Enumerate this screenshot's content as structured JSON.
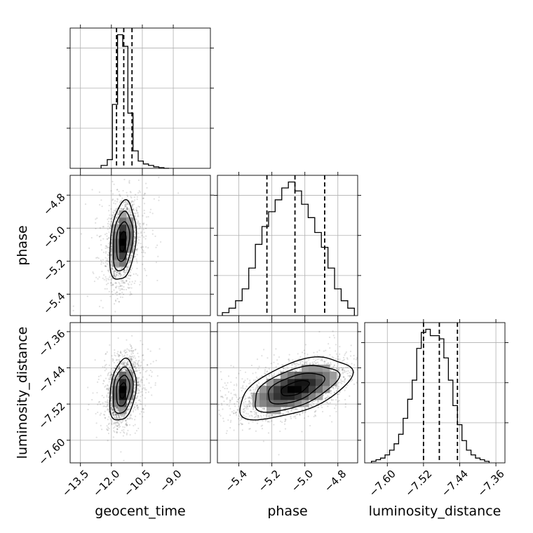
{
  "chart_data": {
    "type": "corner",
    "parameters": [
      "geocent_time",
      "phase",
      "luminosity_distance"
    ],
    "axis_labels": {
      "geocent_time": "geocent_time",
      "phase": "phase",
      "luminosity_distance": "luminosity_distance"
    },
    "ranges": {
      "geocent_time": [
        -14.0,
        -7.2
      ],
      "phase": [
        -5.53,
        -4.68
      ],
      "luminosity_distance": [
        -7.65,
        -7.34
      ]
    },
    "ticks": {
      "geocent_time": {
        "values": [
          -13.5,
          -12.0,
          -10.5,
          -9.0
        ],
        "labels": [
          "−13.5",
          "−12.0",
          "−10.5",
          "−9.0"
        ]
      },
      "phase": {
        "values": [
          -5.4,
          -5.2,
          -5.0,
          -4.8
        ],
        "labels": [
          "−5.4",
          "−5.2",
          "−5.0",
          "−4.8"
        ]
      },
      "luminosity_distance": {
        "values": [
          -7.6,
          -7.52,
          -7.44,
          -7.36
        ],
        "labels": [
          "−7.60",
          "−7.52",
          "−7.44",
          "−7.36"
        ]
      }
    },
    "quantiles": {
      "geocent_time": [
        -11.75,
        -11.4,
        -11.0
      ],
      "phase": [
        -5.23,
        -5.06,
        -4.88
      ],
      "luminosity_distance": [
        -7.52,
        -7.485,
        -7.445
      ]
    },
    "histograms": {
      "geocent_time": {
        "bin_edges": [
          -12.5,
          -12.2,
          -11.95,
          -11.7,
          -11.45,
          -11.2,
          -10.95,
          -10.7,
          -10.45,
          -10.2,
          -9.95,
          -9.7,
          -9.45,
          -9.2
        ],
        "counts": [
          0.02,
          0.06,
          0.44,
          0.92,
          0.84,
          0.38,
          0.12,
          0.05,
          0.03,
          0.02,
          0.01,
          0.005,
          0.0
        ]
      },
      "phase": {
        "bin_edges": [
          -5.5,
          -5.46,
          -5.42,
          -5.38,
          -5.34,
          -5.3,
          -5.26,
          -5.22,
          -5.18,
          -5.14,
          -5.1,
          -5.06,
          -5.02,
          -4.98,
          -4.94,
          -4.9,
          -4.86,
          -4.82,
          -4.78,
          -4.74,
          -4.7
        ],
        "counts": [
          0.02,
          0.05,
          0.1,
          0.18,
          0.32,
          0.48,
          0.6,
          0.7,
          0.78,
          0.86,
          0.9,
          0.84,
          0.75,
          0.66,
          0.56,
          0.46,
          0.32,
          0.18,
          0.1,
          0.05
        ]
      },
      "luminosity_distance": {
        "bin_edges": [
          -7.635,
          -7.625,
          -7.615,
          -7.605,
          -7.595,
          -7.585,
          -7.575,
          -7.565,
          -7.555,
          -7.545,
          -7.535,
          -7.525,
          -7.515,
          -7.505,
          -7.495,
          -7.485,
          -7.475,
          -7.465,
          -7.455,
          -7.445,
          -7.435,
          -7.425,
          -7.415,
          -7.405,
          -7.395,
          -7.385,
          -7.375
        ],
        "counts": [
          0.01,
          0.02,
          0.03,
          0.05,
          0.08,
          0.12,
          0.18,
          0.28,
          0.4,
          0.52,
          0.72,
          0.82,
          0.84,
          0.8,
          0.8,
          0.78,
          0.66,
          0.52,
          0.36,
          0.24,
          0.14,
          0.08,
          0.05,
          0.03,
          0.02,
          0.01
        ]
      }
    },
    "posterior_2d": [
      {
        "x": "geocent_time",
        "y": "phase",
        "mean": [
          -11.45,
          -5.08
        ],
        "std": [
          0.32,
          0.12
        ],
        "corr": 0.25
      },
      {
        "x": "geocent_time",
        "y": "luminosity_distance",
        "mean": [
          -11.45,
          -7.49
        ],
        "std": [
          0.32,
          0.034
        ],
        "corr": 0.25
      },
      {
        "x": "phase",
        "y": "luminosity_distance",
        "mean": [
          -5.06,
          -7.485
        ],
        "std": [
          0.17,
          0.034
        ],
        "corr": 0.55
      }
    ],
    "contour_levels_sigma": [
      0.5,
      1.0,
      1.5,
      2.0
    ],
    "grid": true
  }
}
